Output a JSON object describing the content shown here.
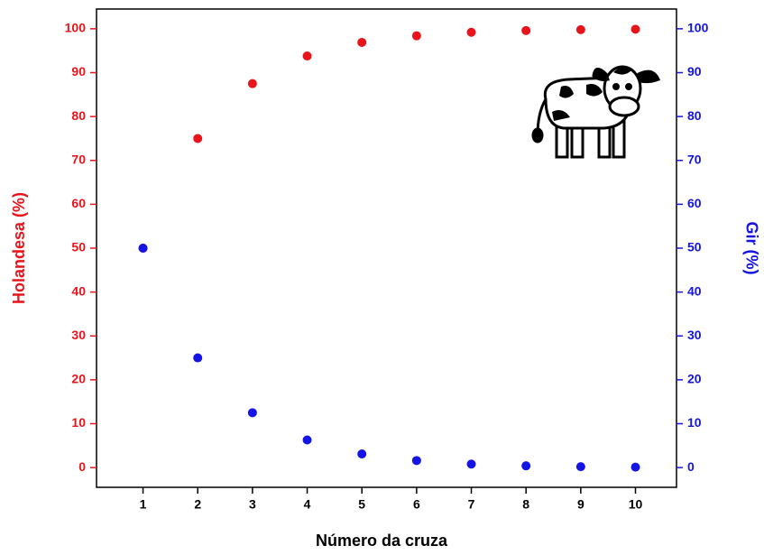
{
  "chart_data": {
    "type": "scatter",
    "xlabel": "Número da cruza",
    "ylabel": "Holandesa (%)",
    "y2label": "Gir (%)",
    "x": [
      1,
      2,
      3,
      4,
      5,
      6,
      7,
      8,
      9,
      10
    ],
    "series": [
      {
        "color": "#e8141b",
        "values": [
          50,
          75,
          87.5,
          93.8,
          96.9,
          98.4,
          99.2,
          99.6,
          99.8,
          99.9
        ]
      },
      {
        "color": "#1414e6",
        "axis": "y2",
        "values": [
          50,
          25,
          12.5,
          6.3,
          3.1,
          1.6,
          0.8,
          0.4,
          0.2,
          0.1
        ]
      }
    ],
    "xlim": [
      0.15,
      10.75
    ],
    "xticks": [
      1,
      2,
      3,
      4,
      5,
      6,
      7,
      8,
      9,
      10
    ],
    "ylim": [
      -4.5,
      104.5
    ],
    "yticks": [
      0,
      10,
      20,
      30,
      40,
      50,
      60,
      70,
      80,
      90,
      100
    ],
    "y2lim": [
      -4.5,
      104.5
    ],
    "y2ticks": [
      0,
      10,
      20,
      30,
      40,
      50,
      60,
      70,
      80,
      90,
      100
    ]
  }
}
